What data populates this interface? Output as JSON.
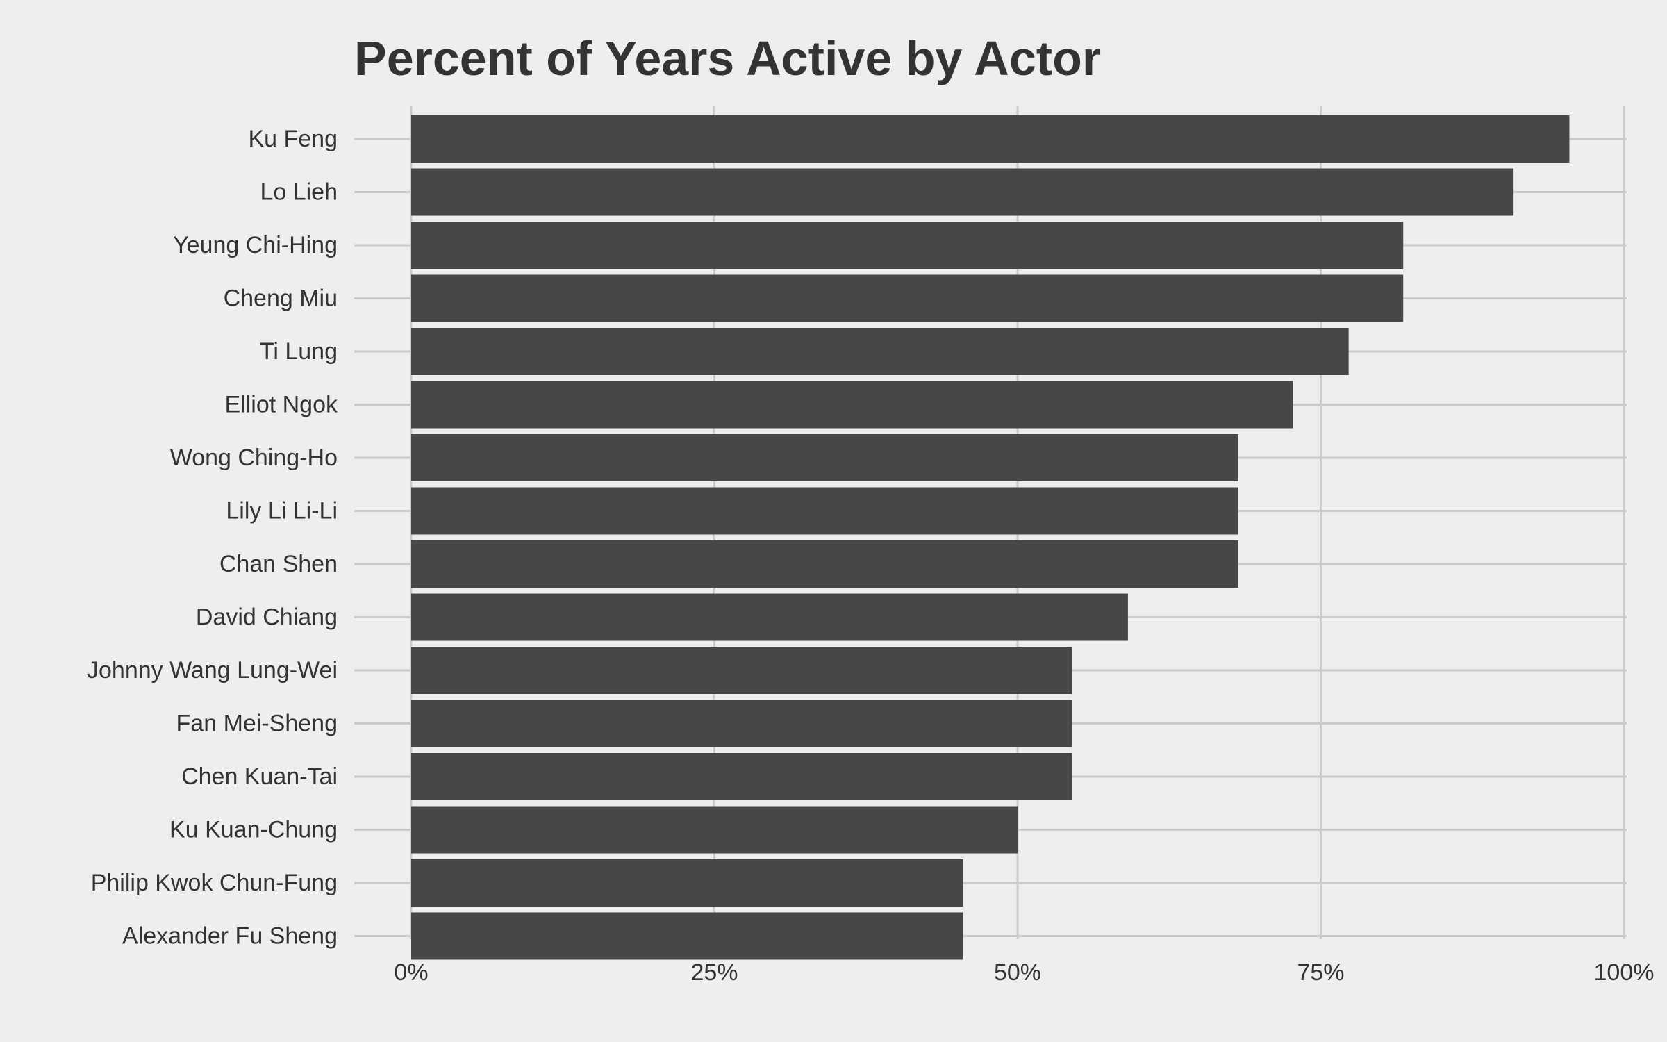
{
  "chart_data": {
    "type": "bar",
    "orientation": "horizontal",
    "title": "Percent of Years Active by Actor",
    "xlabel": "",
    "ylabel": "",
    "categories": [
      "Ku Feng",
      "Lo Lieh",
      "Yeung Chi-Hing",
      "Cheng Miu",
      "Ti Lung",
      "Elliot Ngok",
      "Wong Ching-Ho",
      "Lily Li Li-Li",
      "Chan Shen",
      "David Chiang",
      "Johnny Wang Lung-Wei",
      "Fan Mei-Sheng",
      "Chen Kuan-Tai",
      "Ku Kuan-Chung",
      "Philip Kwok Chun-Fung",
      "Alexander Fu Sheng"
    ],
    "values": [
      0.955,
      0.909,
      0.818,
      0.818,
      0.773,
      0.727,
      0.682,
      0.682,
      0.682,
      0.591,
      0.545,
      0.545,
      0.545,
      0.5,
      0.455,
      0.455
    ],
    "xlim": [
      0,
      1
    ],
    "xticks": [
      0,
      0.25,
      0.5,
      0.75,
      1
    ],
    "xtick_labels": [
      "0%",
      "25%",
      "50%",
      "75%",
      "100%"
    ],
    "grid": true,
    "legend": "none",
    "colors": {
      "background": "#eeeeee",
      "bar": "#474747",
      "grid": "#cbcbcb",
      "text": "#333333"
    }
  }
}
